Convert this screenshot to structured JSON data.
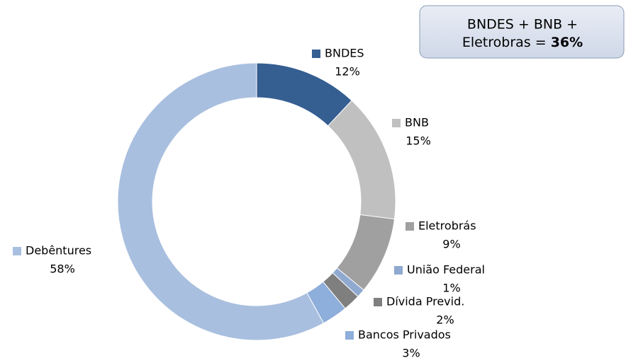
{
  "chart_data": {
    "type": "pie",
    "categories": [
      "BNDES",
      "BNB",
      "Eletrobrás",
      "União Federal",
      "Dívida Previd.",
      "Bancos Privados",
      "Debêntures"
    ],
    "values": [
      12,
      15,
      9,
      1,
      2,
      3,
      58
    ],
    "value_labels": [
      "12%",
      "15%",
      "9%",
      "1%",
      "2%",
      "3%",
      "58%"
    ],
    "colors": [
      "#355e91",
      "#c0c0c0",
      "#a0a0a0",
      "#8fa9d0",
      "#7f7f7f",
      "#8eaedb",
      "#a9bfdf"
    ],
    "annotation": {
      "line1": "BNDES + BNB +",
      "line2": "Eletrobras =",
      "highlight": "36%"
    }
  }
}
